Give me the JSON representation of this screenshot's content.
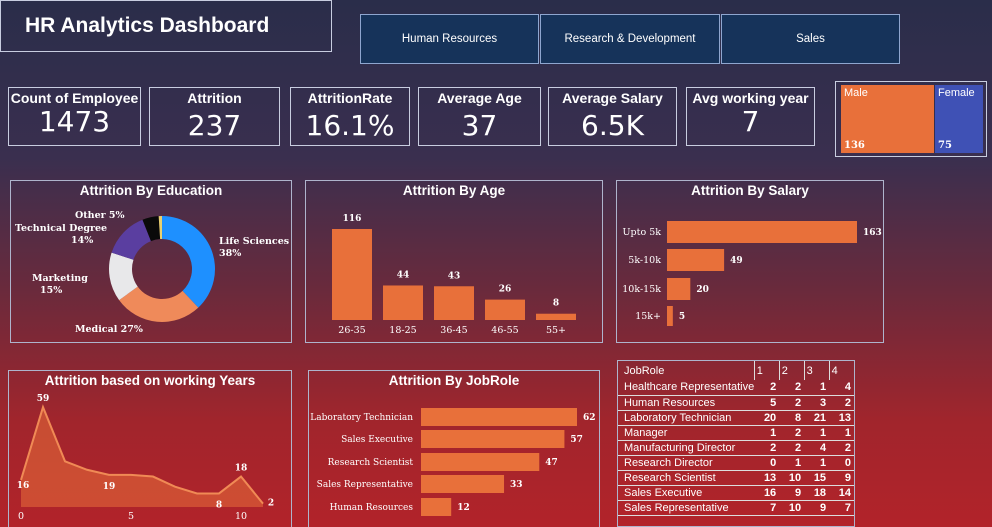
{
  "header": {
    "title": "HR Analytics Dashboard"
  },
  "nav": [
    "Human Resources",
    "Research & Development",
    "Sales"
  ],
  "kpis": [
    {
      "label": "Count of Employee",
      "value": "1473"
    },
    {
      "label": "Attrition",
      "value": "237"
    },
    {
      "label": "AttritionRate",
      "value": "16.1%"
    },
    {
      "label": "Average Age",
      "value": "37"
    },
    {
      "label": "Average Salary",
      "value": "6.5K"
    },
    {
      "label": "Avg working year",
      "value": "7"
    }
  ],
  "gender": {
    "male": {
      "label": "Male",
      "value": "136"
    },
    "female": {
      "label": "Female",
      "value": "75"
    }
  },
  "colors": {
    "bar": "#e8703a",
    "background_top": "#2a2d4a",
    "background_bottom": "#b2232a",
    "nav": "#16335a"
  },
  "chart_data": [
    {
      "type": "pie",
      "title": "Attrition By Education",
      "categories": [
        "Life Sciences",
        "Medical",
        "Marketing",
        "Technical Degree",
        "Other"
      ],
      "values": [
        38,
        27,
        15,
        14,
        5
      ],
      "labels": [
        "Life Sciences\n38%",
        "Medical 27%",
        "Marketing\n15%",
        "Technical Degree\n14%",
        "Other 5%"
      ],
      "colors": [
        "#1e90ff",
        "#ef8a5a",
        "#e8e8ea",
        "#5a3ea0",
        "#0a0a0a",
        "#e8d070"
      ]
    },
    {
      "type": "bar",
      "title": "Attrition By Age",
      "categories": [
        "26-35",
        "18-25",
        "36-45",
        "46-55",
        "55+"
      ],
      "values": [
        116,
        44,
        43,
        26,
        8
      ]
    },
    {
      "type": "bar",
      "orientation": "horizontal",
      "title": "Attrition By Salary",
      "categories": [
        "Upto 5k",
        "5k-10k",
        "10k-15k",
        "15k+"
      ],
      "values": [
        163,
        49,
        20,
        5
      ]
    },
    {
      "type": "area",
      "title": "Attrition based on working Years",
      "x": [
        0,
        1,
        2,
        3,
        4,
        5,
        6,
        7,
        8,
        9,
        10,
        11
      ],
      "values": [
        16,
        59,
        27,
        22,
        19,
        19,
        18,
        12,
        8,
        8,
        18,
        2
      ],
      "point_labels": {
        "0": "16",
        "1": "59",
        "4": "19",
        "9": "8",
        "10": "18",
        "11": "2"
      },
      "xticks": [
        0,
        5,
        10
      ],
      "ylim": [
        0,
        65
      ]
    },
    {
      "type": "bar",
      "orientation": "horizontal",
      "title": "Attrition By JobRole",
      "categories": [
        "Laboratory Technician",
        "Sales Executive",
        "Research Scientist",
        "Sales Representative",
        "Human Resources"
      ],
      "values": [
        62,
        57,
        47,
        33,
        12
      ]
    },
    {
      "type": "table",
      "columns": [
        "JobRole",
        "1",
        "2",
        "3",
        "4"
      ],
      "rows": [
        [
          "Healthcare Representative",
          "2",
          "2",
          "1",
          "4"
        ],
        [
          "Human Resources",
          "5",
          "2",
          "3",
          "2"
        ],
        [
          "Laboratory Technician",
          "20",
          "8",
          "21",
          "13"
        ],
        [
          "Manager",
          "1",
          "2",
          "1",
          "1"
        ],
        [
          "Manufacturing Director",
          "2",
          "2",
          "4",
          "2"
        ],
        [
          "Research Director",
          "0",
          "1",
          "1",
          "0"
        ],
        [
          "Research Scientist",
          "13",
          "10",
          "15",
          "9"
        ],
        [
          "Sales Executive",
          "16",
          "9",
          "18",
          "14"
        ],
        [
          "Sales Representative",
          "7",
          "10",
          "9",
          "7"
        ]
      ]
    }
  ]
}
